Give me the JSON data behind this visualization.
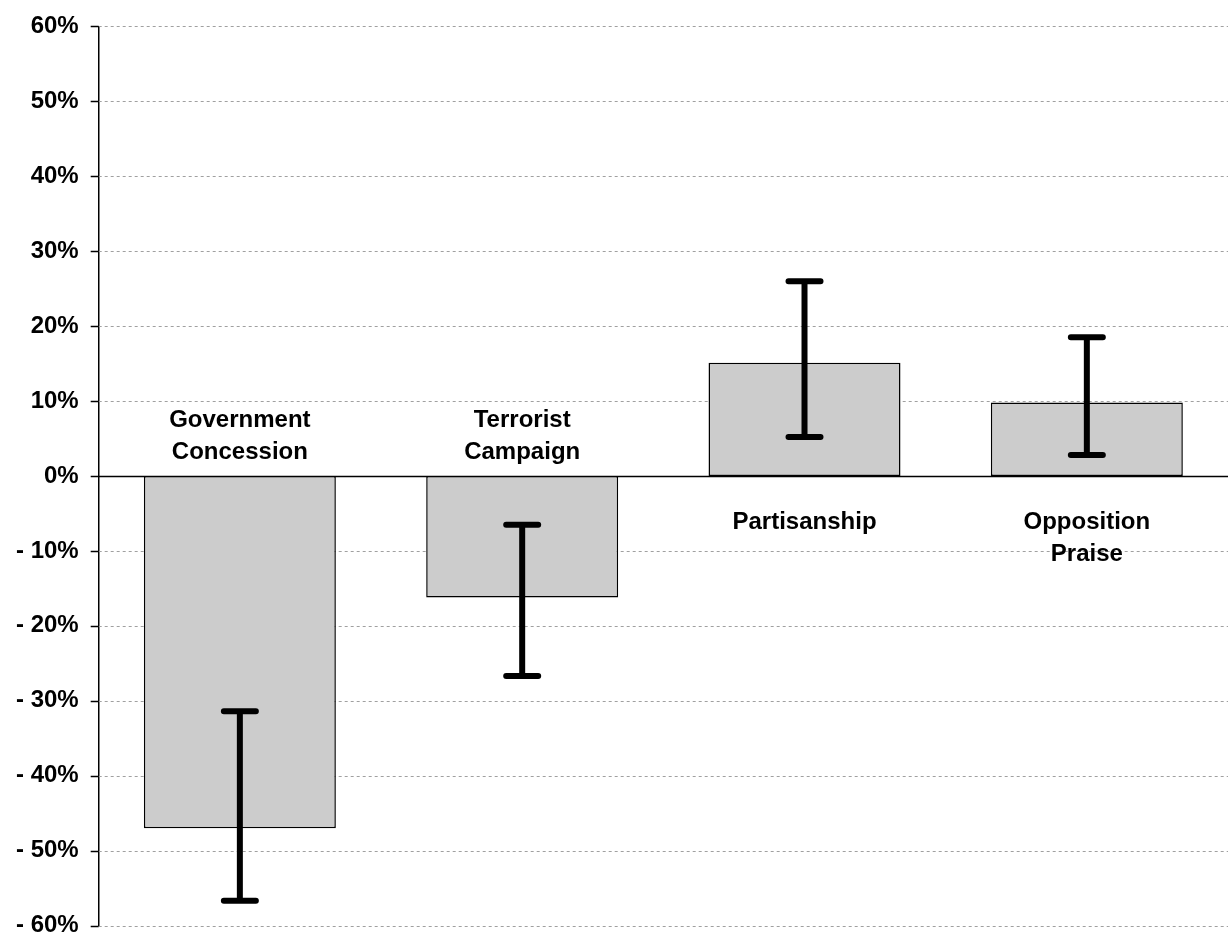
{
  "chart_data": {
    "type": "bar",
    "categories": [
      "Government Concession",
      "Terrorist Campaign",
      "Partisanship",
      "Opposition Praise"
    ],
    "values": [
      -47,
      -16.2,
      15.1,
      9.8
    ],
    "errors": [
      [
        -56.7,
        -31.4
      ],
      [
        -26.7,
        -6.5
      ],
      [
        5.2,
        26.0
      ],
      [
        2.8,
        18.5
      ]
    ],
    "color": "#cccccc",
    "ylim": [
      -60,
      60
    ],
    "yticks": [
      {
        "value": -60,
        "label": "- 60%"
      },
      {
        "value": -50,
        "label": "- 50%"
      },
      {
        "value": -40,
        "label": "- 40%"
      },
      {
        "value": -30,
        "label": "- 30%"
      },
      {
        "value": -20,
        "label": "- 20%"
      },
      {
        "value": -10,
        "label": "- 10%"
      },
      {
        "value": 0,
        "label": "0%"
      },
      {
        "value": 10,
        "label": "10%"
      },
      {
        "value": 20,
        "label": "20%"
      },
      {
        "value": 30,
        "label": "30%"
      },
      {
        "value": 40,
        "label": "40%"
      },
      {
        "value": 50,
        "label": "50%"
      },
      {
        "value": 60,
        "label": "60%"
      }
    ],
    "grid": "y",
    "legend": false
  }
}
